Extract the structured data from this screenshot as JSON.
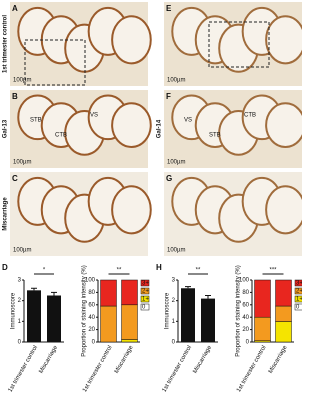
{
  "panels": [
    {
      "letter": "A",
      "scale": "100µm",
      "side": "1st trimester control"
    },
    {
      "letter": "B",
      "side": "Gal-13",
      "scale": "100µm",
      "labels": [
        "STB",
        "CTB",
        "VS"
      ]
    },
    {
      "letter": "C",
      "side": "Miscarriage",
      "scale": "100µm"
    },
    {
      "letter": "E",
      "scale": "100µm"
    },
    {
      "letter": "F",
      "side": "Gal-14",
      "scale": "100µm",
      "labels": [
        "VS",
        "STB",
        "CTB"
      ]
    },
    {
      "letter": "G",
      "scale": "100µm"
    }
  ],
  "chart_letters": [
    "D",
    "H"
  ],
  "chart_data": [
    {
      "type": "bar",
      "ylabel": "Immunoscore",
      "categories": [
        "1st trimester control",
        "Miscarriage"
      ],
      "values": [
        2.5,
        2.25
      ],
      "errors": [
        0.1,
        0.15
      ],
      "color": "#111111",
      "ylim": [
        0,
        3
      ],
      "yticks": [
        0,
        1,
        2,
        3
      ],
      "annotation": "*"
    },
    {
      "type": "stacked_bar",
      "ylabel": "Proportion of staining intensity (%)",
      "categories": [
        "1st trimester control",
        "Miscarriage"
      ],
      "series": [
        {
          "name": "0",
          "color": "#ffffff",
          "values": [
            0,
            0
          ]
        },
        {
          "name": "1+",
          "color": "#f5e400",
          "values": [
            0,
            4
          ]
        },
        {
          "name": "2+",
          "color": "#f39a1f",
          "values": [
            58,
            56
          ]
        },
        {
          "name": "3+",
          "color": "#e8261f",
          "values": [
            42,
            40
          ]
        }
      ],
      "ylim": [
        0,
        100
      ],
      "yticks": [
        0,
        20,
        40,
        60,
        80,
        100
      ],
      "annotation": "**"
    },
    {
      "type": "bar",
      "ylabel": "Immunoscore",
      "categories": [
        "1st trimester control",
        "Miscarriage"
      ],
      "values": [
        2.6,
        2.1
      ],
      "errors": [
        0.08,
        0.15
      ],
      "color": "#111111",
      "ylim": [
        0,
        3
      ],
      "yticks": [
        0,
        1,
        2,
        3
      ],
      "annotation": "**"
    },
    {
      "type": "stacked_bar",
      "ylabel": "Proportion of staining intensity (%)",
      "categories": [
        "1st trimester control",
        "Miscarriage"
      ],
      "series": [
        {
          "name": "0",
          "color": "#ffffff",
          "values": [
            0,
            0
          ]
        },
        {
          "name": "1+",
          "color": "#f5e400",
          "values": [
            2,
            33
          ]
        },
        {
          "name": "2+",
          "color": "#f39a1f",
          "values": [
            38,
            25
          ]
        },
        {
          "name": "3+",
          "color": "#e8261f",
          "values": [
            60,
            42
          ]
        }
      ],
      "ylim": [
        0,
        100
      ],
      "yticks": [
        0,
        20,
        40,
        60,
        80,
        100
      ],
      "annotation": "***"
    }
  ]
}
